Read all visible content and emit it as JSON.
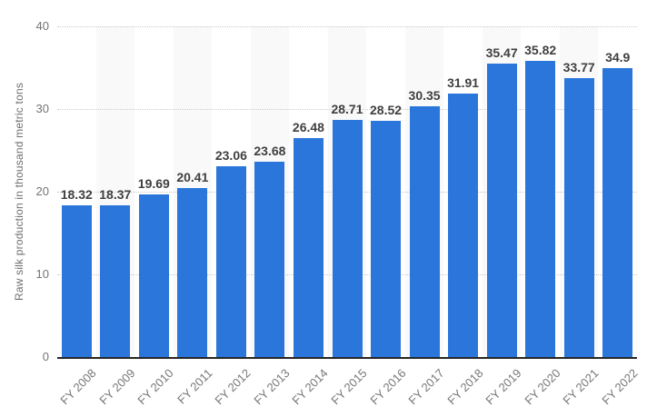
{
  "chart_data": {
    "type": "bar",
    "title": "",
    "xlabel": "",
    "ylabel": "Raw silk production in thousand metric tons",
    "ylim": [
      0,
      40
    ],
    "yticks": [
      0,
      10,
      20,
      30,
      40
    ],
    "grid": "horizontal-dotted",
    "legend": "none",
    "plot_bands": "alternate light stripes behind every second category",
    "colors": {
      "bar": "#2b76db",
      "stripe": "#f9f9f9",
      "gridline": "#c9c9c9",
      "axis_line": "#262626",
      "tick_text": "#747474",
      "value_text": "#3f3f3f",
      "background": "#ffffff"
    },
    "categories": [
      "FY 2008",
      "FY 2009",
      "FY 2010",
      "FY 2011",
      "FY 2012",
      "FY 2013",
      "FY 2014",
      "FY 2015",
      "FY 2016",
      "FY 2017",
      "FY 2018",
      "FY 2019",
      "FY 2020",
      "FY 2021",
      "FY 2022"
    ],
    "values": [
      18.32,
      18.37,
      19.69,
      20.41,
      23.06,
      23.68,
      26.48,
      28.71,
      28.52,
      30.35,
      31.91,
      35.47,
      35.82,
      33.77,
      34.9
    ],
    "value_labels": [
      "18.32",
      "18.37",
      "19.69",
      "20.41",
      "23.06",
      "23.68",
      "26.48",
      "28.71",
      "28.52",
      "30.35",
      "31.91",
      "35.47",
      "35.82",
      "33.77",
      "34.9"
    ]
  }
}
